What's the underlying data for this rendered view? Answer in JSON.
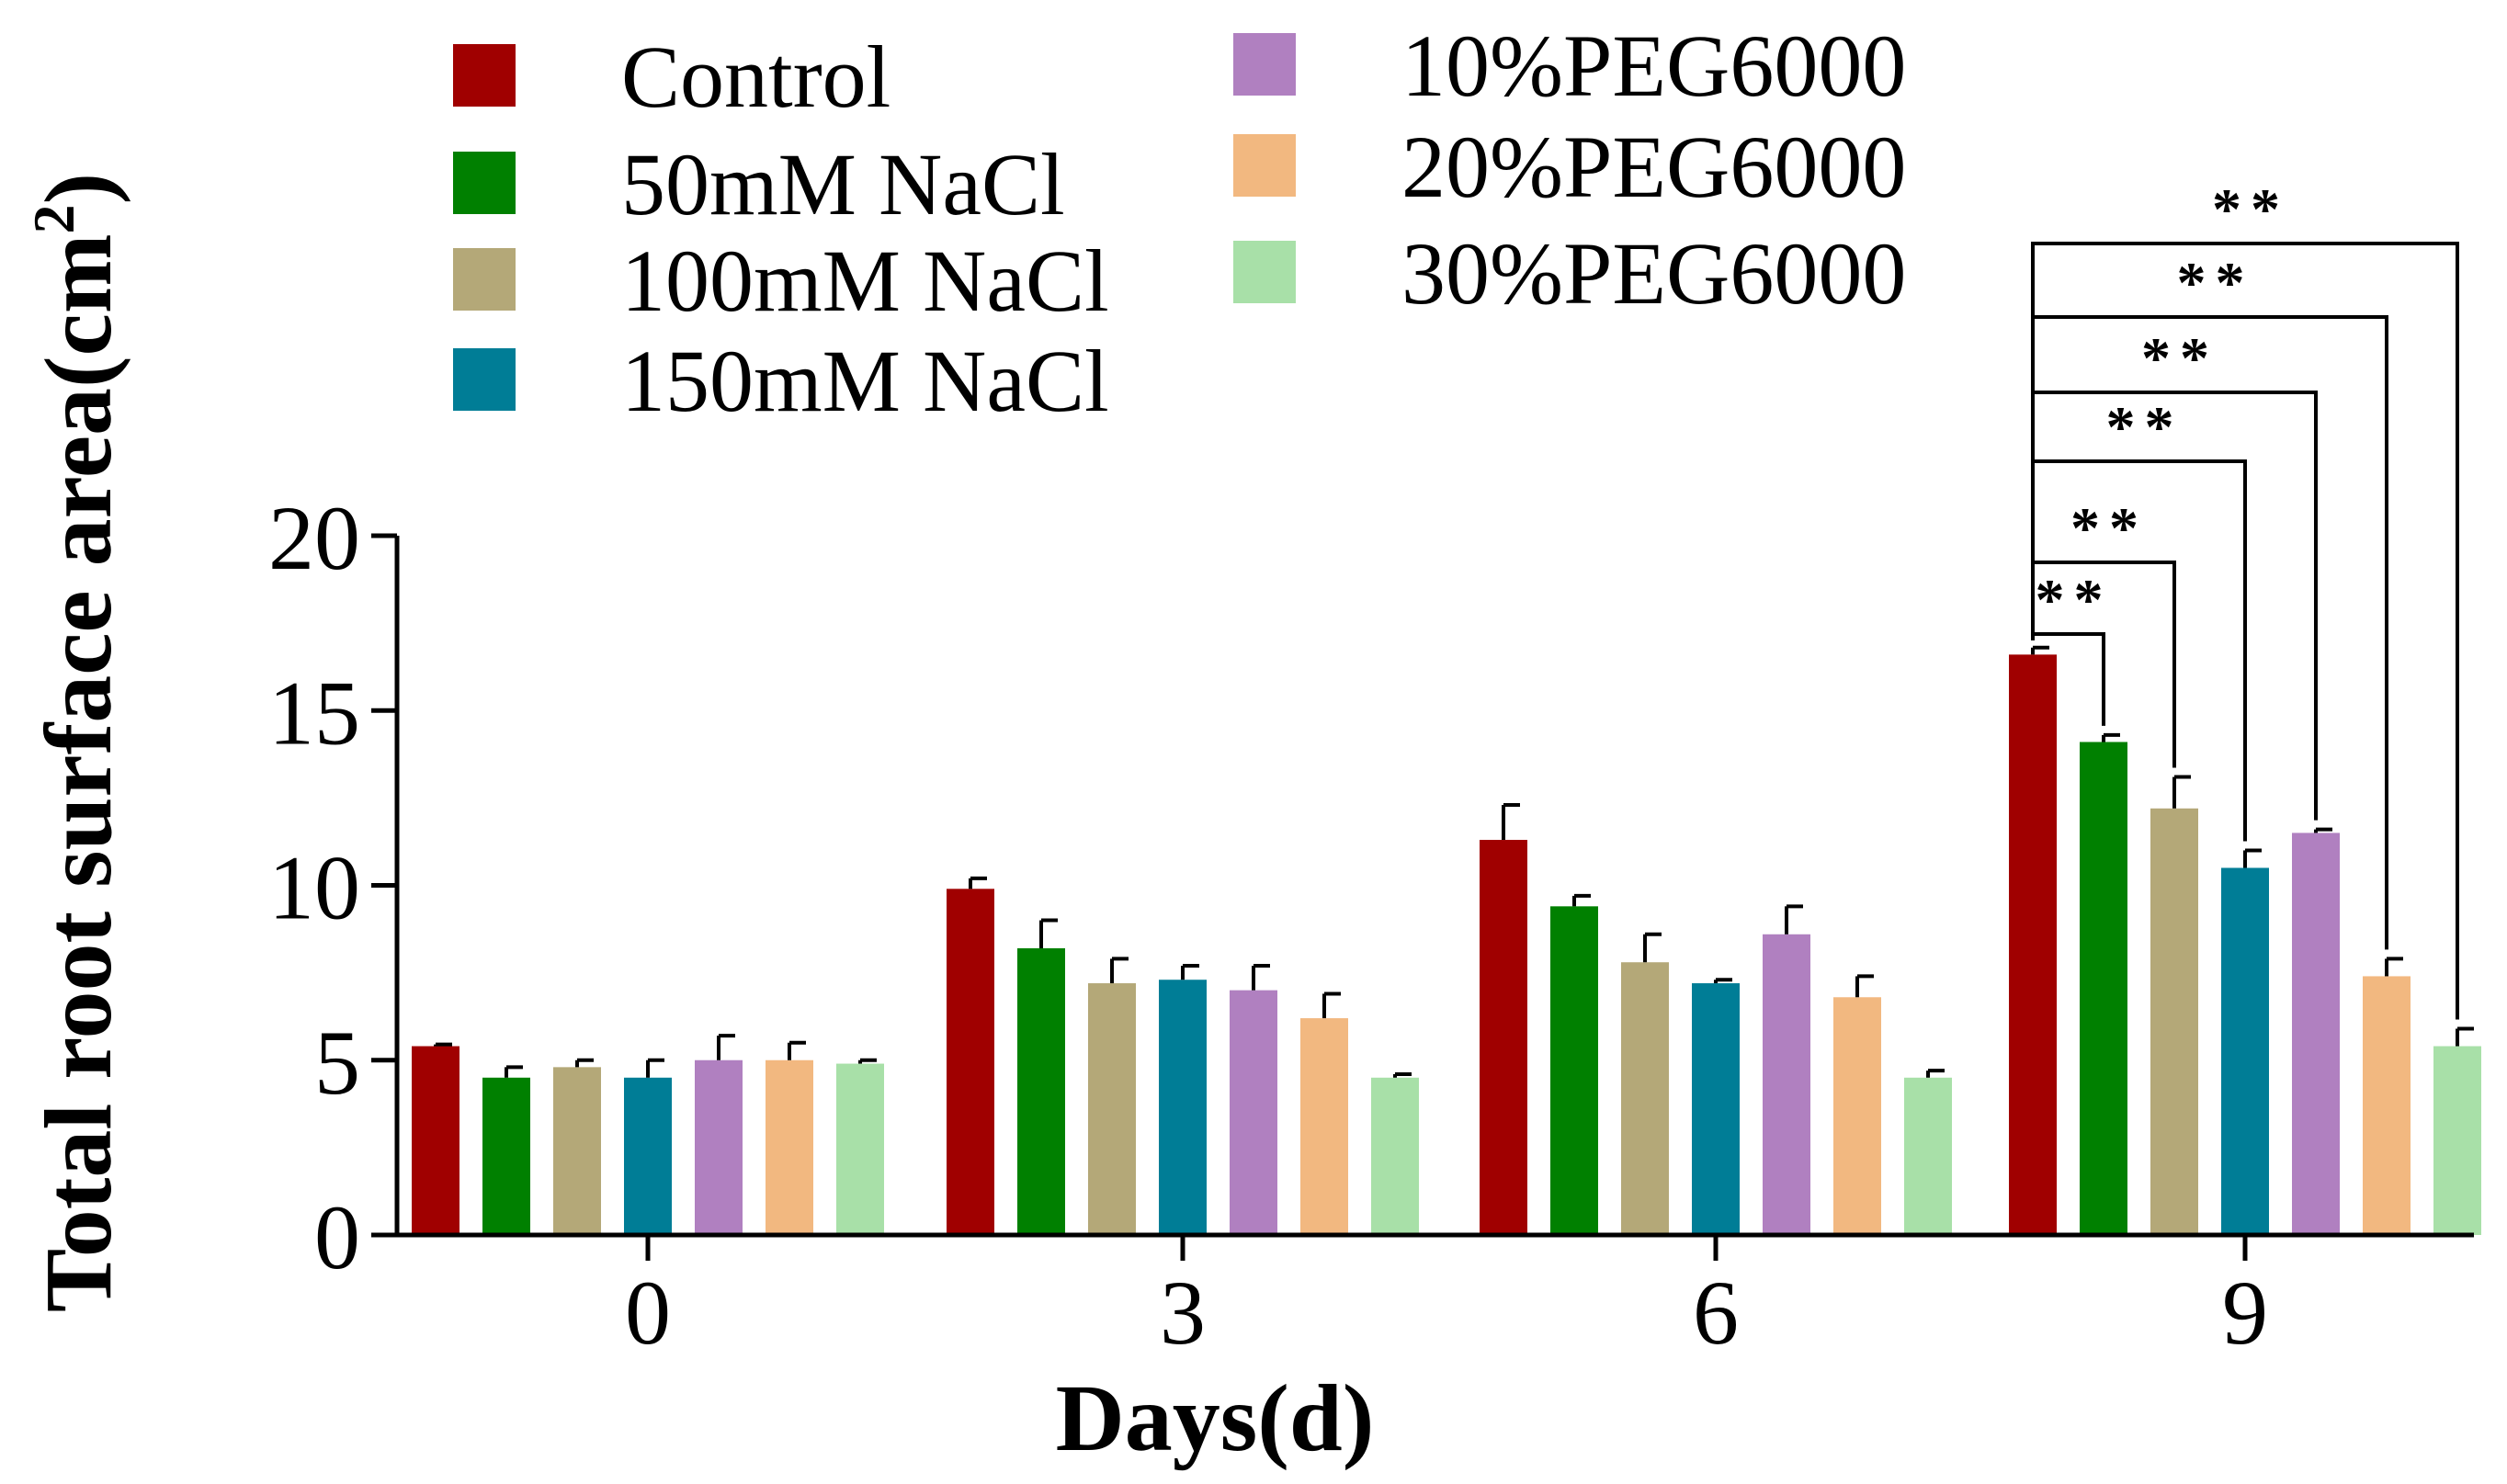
{
  "chart_data": {
    "type": "bar",
    "xlabel": "Days(d)",
    "ylabel": "Total root surface area(cm",
    "ylabel_sup": "2",
    "ylabel_close": ")",
    "ylim": [
      0,
      20
    ],
    "yticks": [
      0,
      5,
      10,
      15,
      20
    ],
    "categories": [
      "0",
      "3",
      "6",
      "9"
    ],
    "series": [
      {
        "name": "Control",
        "color": "#a00000",
        "values": [
          5.4,
          9.9,
          11.3,
          16.6
        ],
        "errors": [
          0.05,
          0.3,
          1.0,
          0.2
        ]
      },
      {
        "name": "50mM NaCl",
        "color": "#008000",
        "values": [
          4.5,
          8.2,
          9.4,
          14.1
        ],
        "errors": [
          0.3,
          0.8,
          0.3,
          0.2
        ]
      },
      {
        "name": "100mM NaCl",
        "color": "#b4a878",
        "values": [
          4.8,
          7.2,
          7.8,
          12.2
        ],
        "errors": [
          0.2,
          0.7,
          0.8,
          0.9
        ]
      },
      {
        "name": "150mM NaCl",
        "color": "#007d96",
        "values": [
          4.5,
          7.3,
          7.2,
          10.5
        ],
        "errors": [
          0.5,
          0.4,
          0.1,
          0.5
        ]
      },
      {
        "name": "10%PEG6000",
        "color": "#b080c0",
        "values": [
          5.0,
          7.0,
          8.6,
          11.5
        ],
        "errors": [
          0.7,
          0.7,
          0.8,
          0.1
        ]
      },
      {
        "name": "20%PEG6000",
        "color": "#f2b880",
        "values": [
          5.0,
          6.2,
          6.8,
          7.4
        ],
        "errors": [
          0.5,
          0.7,
          0.6,
          0.5
        ]
      },
      {
        "name": "30%PEG6000",
        "color": "#a8e0a8",
        "values": [
          4.9,
          4.5,
          4.5,
          5.4
        ],
        "errors": [
          0.1,
          0.1,
          0.2,
          0.5
        ]
      }
    ],
    "significance": [
      {
        "category": "9",
        "from_series": 0,
        "to_series": 1,
        "label": "**"
      },
      {
        "category": "9",
        "from_series": 0,
        "to_series": 2,
        "label": "**"
      },
      {
        "category": "9",
        "from_series": 0,
        "to_series": 3,
        "label": "**"
      },
      {
        "category": "9",
        "from_series": 0,
        "to_series": 4,
        "label": "**"
      },
      {
        "category": "9",
        "from_series": 0,
        "to_series": 5,
        "label": "**"
      },
      {
        "category": "9",
        "from_series": 0,
        "to_series": 6,
        "label": "**"
      }
    ]
  }
}
